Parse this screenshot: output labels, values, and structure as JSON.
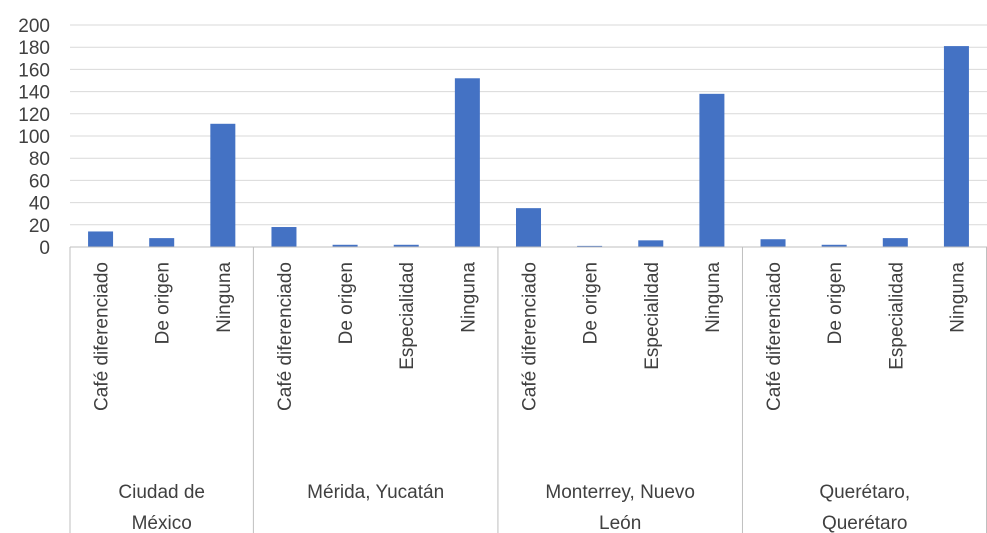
{
  "chart_data": {
    "type": "bar",
    "title": "",
    "xlabel": "",
    "ylabel": "",
    "ylim": [
      0,
      200
    ],
    "yticks": [
      0,
      20,
      40,
      60,
      80,
      100,
      120,
      140,
      160,
      180,
      200
    ],
    "grid": true,
    "legend": "none",
    "bar_color": "#4472C4",
    "groups": [
      {
        "name": "Ciudad de México",
        "name_lines": [
          "Ciudad de",
          "México"
        ],
        "categories": [
          "Café diferenciado",
          "De origen",
          "Ninguna"
        ],
        "values": [
          14,
          8,
          111
        ]
      },
      {
        "name": "Mérida, Yucatán",
        "name_lines": [
          "Mérida, Yucatán"
        ],
        "categories": [
          "Café diferenciado",
          "De origen",
          "Especialidad",
          "Ninguna"
        ],
        "values": [
          18,
          2,
          2,
          152
        ]
      },
      {
        "name": "Monterrey, Nuevo León",
        "name_lines": [
          "Monterrey, Nuevo",
          "León"
        ],
        "categories": [
          "Café diferenciado",
          "De origen",
          "Especialidad",
          "Ninguna"
        ],
        "values": [
          35,
          1,
          6,
          138
        ]
      },
      {
        "name": "Querétaro, Querétaro",
        "name_lines": [
          "Querétaro,",
          "Querétaro"
        ],
        "categories": [
          "Café diferenciado",
          "De origen",
          "Especialidad",
          "Ninguna"
        ],
        "values": [
          7,
          2,
          8,
          181
        ]
      }
    ]
  }
}
